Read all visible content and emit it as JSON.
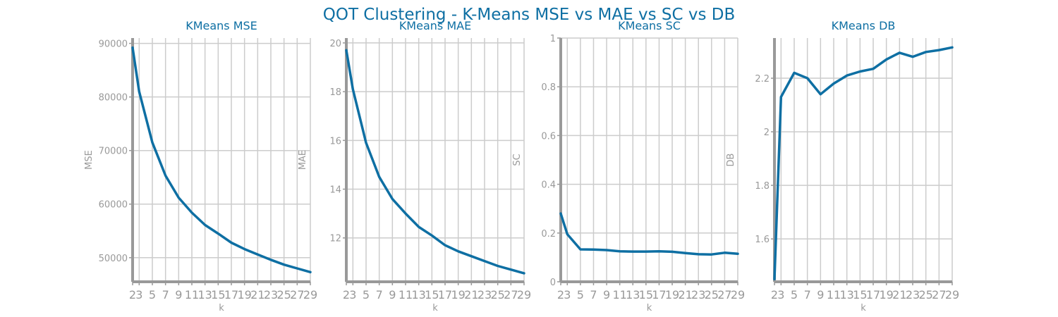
{
  "figure": {
    "title": "QOT Clustering - K-Means MSE vs MAE vs SC vs DB",
    "colors": {
      "line": "#0e6fa3",
      "title": "#0e6fa3",
      "grid": "#cccccc",
      "axis": "#999999",
      "text": "#999999"
    }
  },
  "chart_data": [
    {
      "type": "line",
      "title": "KMeans MSE",
      "xlabel": "k",
      "ylabel": "MSE",
      "grid": true,
      "x": [
        2,
        3,
        5,
        7,
        9,
        11,
        13,
        15,
        17,
        19,
        21,
        23,
        25,
        27,
        29
      ],
      "xticks": [
        2,
        3,
        5,
        7,
        9,
        11,
        13,
        15,
        17,
        19,
        21,
        23,
        25,
        27,
        29
      ],
      "yticks": [
        50000,
        60000,
        70000,
        80000,
        90000
      ],
      "xlim": [
        2,
        29
      ],
      "ylim": [
        45500,
        91000
      ],
      "series": [
        {
          "values": [
            89200,
            81000,
            71500,
            65300,
            61200,
            58400,
            56100,
            54500,
            52800,
            51600,
            50600,
            49600,
            48700,
            48000,
            47300
          ]
        }
      ]
    },
    {
      "type": "line",
      "title": "KMeans MAE",
      "xlabel": "k",
      "ylabel": "MAE",
      "grid": true,
      "x": [
        2,
        3,
        5,
        7,
        9,
        11,
        13,
        15,
        17,
        19,
        21,
        23,
        25,
        27,
        29
      ],
      "xticks": [
        2,
        3,
        5,
        7,
        9,
        11,
        13,
        15,
        17,
        19,
        21,
        23,
        25,
        27,
        29
      ],
      "yticks": [
        12,
        14,
        16,
        18,
        20
      ],
      "xlim": [
        2,
        29
      ],
      "ylim": [
        10.2,
        20.2
      ],
      "series": [
        {
          "values": [
            19.7,
            18.1,
            15.9,
            14.5,
            13.6,
            13.0,
            12.45,
            12.1,
            11.7,
            11.45,
            11.25,
            11.05,
            10.85,
            10.7,
            10.55
          ]
        }
      ]
    },
    {
      "type": "line",
      "title": "KMeans SC",
      "xlabel": "k",
      "ylabel": "SC",
      "grid": true,
      "x": [
        2,
        3,
        5,
        7,
        9,
        11,
        13,
        15,
        17,
        19,
        21,
        23,
        25,
        27,
        29
      ],
      "xticks": [
        2,
        3,
        5,
        7,
        9,
        11,
        13,
        15,
        17,
        19,
        21,
        23,
        25,
        27,
        29
      ],
      "yticks": [
        0.0,
        0.2,
        0.4,
        0.6,
        0.8,
        1.0
      ],
      "xlim": [
        2,
        29
      ],
      "ylim": [
        0.0,
        1.0
      ],
      "series": [
        {
          "values": [
            0.28,
            0.195,
            0.133,
            0.132,
            0.13,
            0.125,
            0.124,
            0.124,
            0.125,
            0.123,
            0.118,
            0.113,
            0.112,
            0.119,
            0.115
          ]
        }
      ]
    },
    {
      "type": "line",
      "title": "KMeans DB",
      "xlabel": "k",
      "ylabel": "DB",
      "grid": true,
      "x": [
        2,
        3,
        5,
        7,
        9,
        11,
        13,
        15,
        17,
        19,
        21,
        23,
        25,
        27,
        29
      ],
      "xticks": [
        2,
        3,
        5,
        7,
        9,
        11,
        13,
        15,
        17,
        19,
        21,
        23,
        25,
        27,
        29
      ],
      "yticks": [
        1.6,
        1.8,
        2.0,
        2.2
      ],
      "xlim": [
        2,
        29
      ],
      "ylim": [
        1.44,
        2.35
      ],
      "series": [
        {
          "values": [
            1.45,
            2.13,
            2.22,
            2.2,
            2.14,
            2.18,
            2.21,
            2.225,
            2.235,
            2.27,
            2.295,
            2.28,
            2.298,
            2.305,
            2.315
          ]
        }
      ]
    }
  ]
}
